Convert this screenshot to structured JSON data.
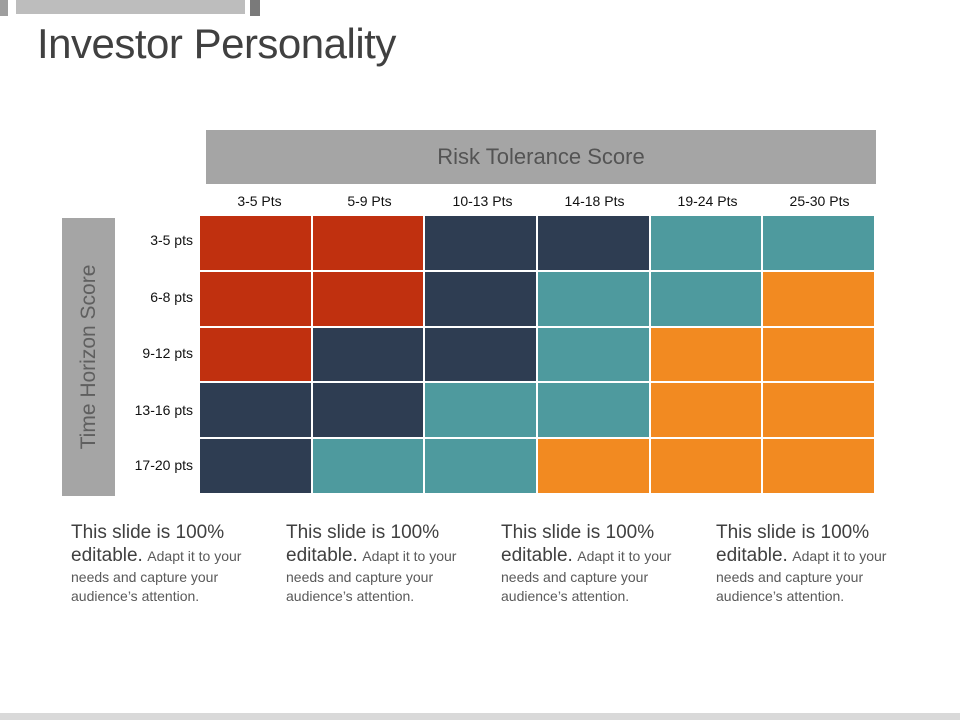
{
  "title": "Investor Personality",
  "colors": {
    "red": "#c0300f",
    "navy": "#2e3d52",
    "teal": "#4e9a9e",
    "orange": "#f28a21"
  },
  "chart_data": {
    "type": "heatmap",
    "x_title": "Risk Tolerance Score",
    "y_title": "Time Horizon Score",
    "columns": [
      "3-5 Pts",
      "5-9 Pts",
      "10-13 Pts",
      "14-18 Pts",
      "19-24 Pts",
      "25-30 Pts"
    ],
    "rows": [
      "3-5 pts",
      "6-8 pts",
      "9-12 pts",
      "13-16 pts",
      "17-20 pts"
    ],
    "cells": [
      [
        "red",
        "red",
        "navy",
        "navy",
        "teal",
        "teal"
      ],
      [
        "red",
        "red",
        "navy",
        "teal",
        "teal",
        "orange"
      ],
      [
        "red",
        "navy",
        "navy",
        "teal",
        "orange",
        "orange"
      ],
      [
        "navy",
        "navy",
        "teal",
        "teal",
        "orange",
        "orange"
      ],
      [
        "navy",
        "teal",
        "teal",
        "orange",
        "orange",
        "orange"
      ]
    ]
  },
  "notes": [
    {
      "big": "This slide is 100% editable.",
      "small": "Adapt it to your needs and capture your audience’s attention."
    },
    {
      "big": "This slide is 100% editable.",
      "small": "Adapt it to your needs and capture your audience’s attention."
    },
    {
      "big": "This slide is 100% editable.",
      "small": "Adapt it to your needs and capture your audience’s attention."
    },
    {
      "big": "This slide is 100% editable.",
      "small": "Adapt it to your needs and capture your audience’s attention."
    }
  ]
}
